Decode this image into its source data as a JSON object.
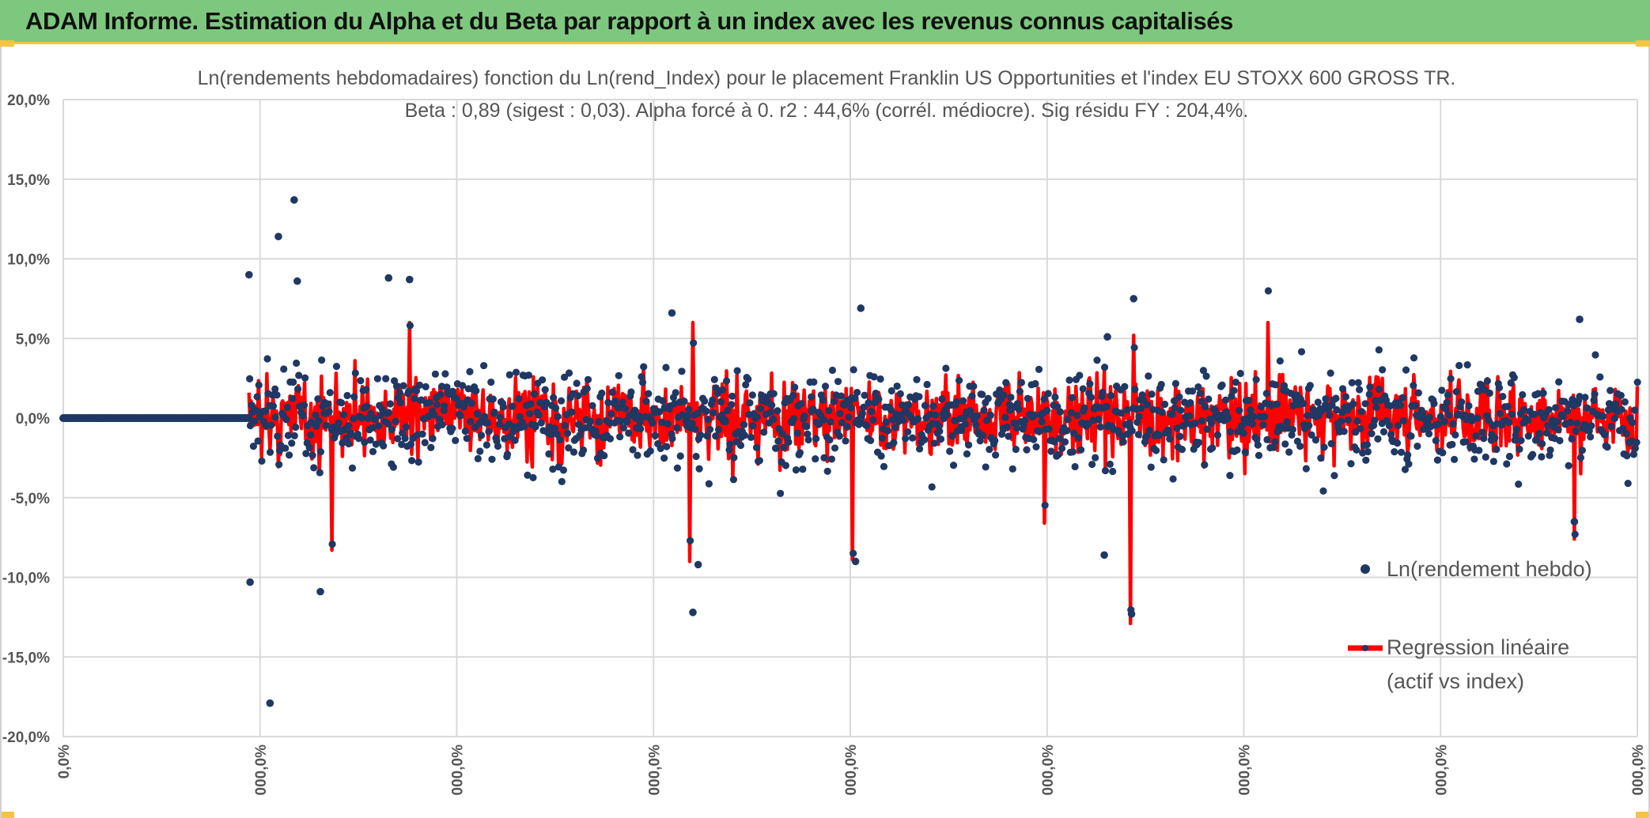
{
  "header": {
    "title": "ADAM Informe. Estimation du Alpha et du Beta par rapport à un index avec les revenus connus capitalisés"
  },
  "colors": {
    "header_bg": "#7dc87e",
    "accent": "#f4c542",
    "scatter": "#1f3864",
    "regression": "#ff0000"
  },
  "chart_data": {
    "type": "scatter",
    "title": "Ln(rendements hebdomadaires) fonction du Ln(rend_Index) pour le placement Franklin US Opportunities et l'index EU STOXX 600 GROSS TR.",
    "subtitle": "Beta : 0,89 (sigest : 0,03). Alpha forcé à 0. r2 : 44,6% (corrél. médiocre). Sig résidu FY : 204,4%.",
    "y_ticks": [
      "20,0%",
      "15,0%",
      "10,0%",
      "5,0%",
      "0,0%",
      "-5,0%",
      "-10,0%",
      "-15,0%",
      "-20,0%"
    ],
    "x_ticks": [
      "0,0%",
      "000,0%",
      "000,0%",
      "000,0%",
      "000,0%",
      "000,0%",
      "000,0%",
      "000,0%",
      "000,0%"
    ],
    "ylim": [
      -20,
      20
    ],
    "xlim": [
      0,
      1500
    ],
    "grid": true,
    "legend_position": "right",
    "series": [
      {
        "name": "Ln(rendement hebdo)",
        "kind": "scatter",
        "color": "#1f3864"
      },
      {
        "name": "Regression linéaire (actif vs index)",
        "kind": "line",
        "color": "#ff0000"
      }
    ],
    "legend": {
      "scatter_label": "Ln(rendement hebdo)",
      "line_label_1": "Regression linéaire",
      "line_label_2": "(actif vs index)"
    },
    "flat_segment": {
      "x_range": [
        0,
        177
      ],
      "y": 0
    },
    "data_start_x": 177,
    "data_end_x": 1500,
    "outliers": [
      {
        "x": 177,
        "y": 9.0
      },
      {
        "x": 178,
        "y": -10.3
      },
      {
        "x": 205,
        "y": 11.4
      },
      {
        "x": 220,
        "y": 13.7
      },
      {
        "x": 223,
        "y": 8.6
      },
      {
        "x": 197,
        "y": -17.9
      },
      {
        "x": 245,
        "y": -10.9
      },
      {
        "x": 310,
        "y": 8.8
      },
      {
        "x": 330,
        "y": 8.7
      },
      {
        "x": 600,
        "y": -12.2
      },
      {
        "x": 580,
        "y": 6.6
      },
      {
        "x": 605,
        "y": -9.2
      },
      {
        "x": 760,
        "y": 6.9
      },
      {
        "x": 755,
        "y": -9.0
      },
      {
        "x": 1018,
        "y": -12.3
      },
      {
        "x": 1020,
        "y": 7.5
      },
      {
        "x": 1445,
        "y": 6.2
      },
      {
        "x": 1440,
        "y": -6.5
      },
      {
        "x": 992,
        "y": -8.6
      },
      {
        "x": 995,
        "y": 5.1
      }
    ],
    "regression_spikes": [
      {
        "x": 330,
        "y": 8.7
      },
      {
        "x": 600,
        "y": 7.0
      },
      {
        "x": 597,
        "y": -9.0
      },
      {
        "x": 752,
        "y": -8.9
      },
      {
        "x": 1017,
        "y": -12.9
      },
      {
        "x": 1020,
        "y": 5.2
      },
      {
        "x": 1148,
        "y": 6.4
      },
      {
        "x": 1440,
        "y": -7.6
      },
      {
        "x": 256,
        "y": -8.3
      },
      {
        "x": 935,
        "y": -6.6
      }
    ]
  }
}
